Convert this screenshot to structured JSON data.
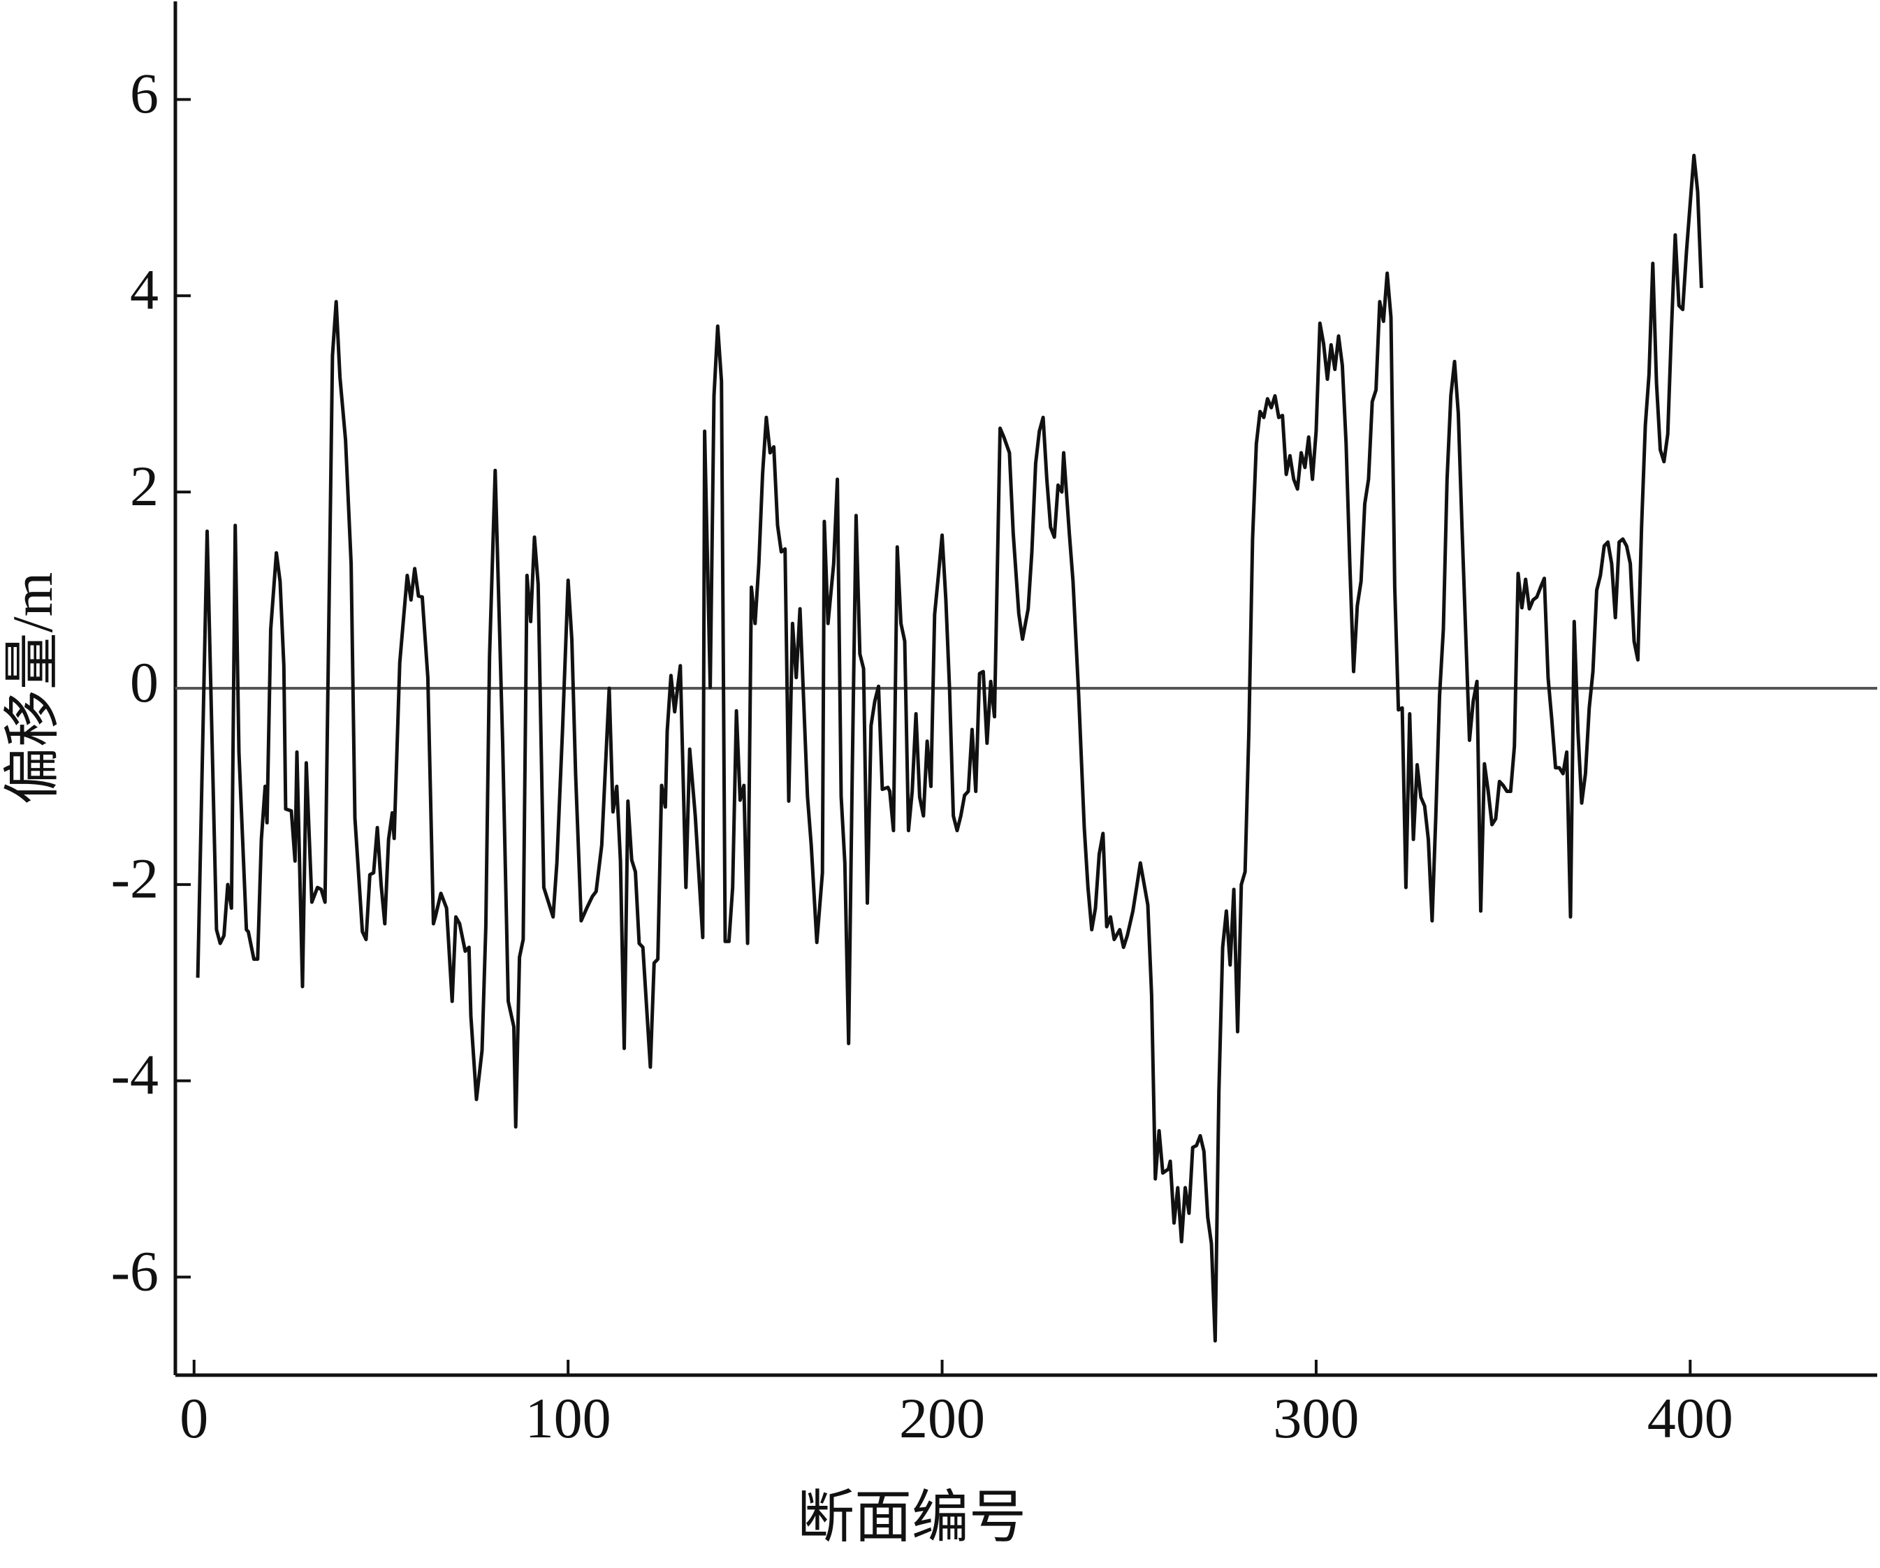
{
  "chart_data": {
    "type": "line",
    "xlabel": "断面编号",
    "ylabel": "偏移量/m",
    "color": "#111111",
    "zero_line": 0,
    "zero_line_color": "#555555",
    "xlim": [
      -5,
      450
    ],
    "ylim": [
      -7,
      7
    ],
    "xticks": [
      0,
      100,
      200,
      300,
      400
    ],
    "yticks": [
      -6,
      -4,
      -2,
      0,
      2,
      4,
      6
    ],
    "x": [
      1,
      3.5,
      6,
      7,
      8,
      9,
      10,
      11,
      12,
      14,
      14.5,
      16,
      17,
      18,
      19,
      19.5,
      20.5,
      22,
      23,
      24,
      24.5,
      26,
      27,
      27.5,
      29,
      30,
      31.5,
      33,
      34,
      35,
      37,
      38,
      39,
      40.5,
      42,
      43,
      45,
      46,
      47,
      48,
      49,
      50,
      51,
      52,
      53,
      53.5,
      55,
      57,
      58,
      59,
      60,
      61,
      62.5,
      64,
      64.5,
      66,
      67.5,
      69,
      70,
      71,
      72.5,
      73.5,
      74,
      75.5,
      77,
      78,
      79,
      80.5,
      82.5,
      84,
      85.5,
      86,
      87,
      88,
      89,
      90,
      91,
      92,
      93.5,
      96,
      97,
      98.5,
      100,
      101,
      102,
      103.5,
      105,
      106.5,
      107.5,
      109,
      111,
      112,
      113,
      114,
      115,
      116,
      117,
      118,
      119,
      120,
      122,
      123,
      124,
      125,
      126,
      126.5,
      127.5,
      128.5,
      130,
      131.5,
      132.5,
      134,
      136,
      136.5,
      138,
      139,
      140,
      141,
      142,
      143,
      144,
      145,
      146,
      147,
      148,
      149,
      150,
      151,
      152,
      153,
      154,
      155,
      156,
      157,
      158,
      159,
      160,
      161,
      162,
      164,
      165,
      166.5,
      168,
      168.5,
      169.5,
      171,
      172,
      173,
      174,
      175,
      176,
      177,
      178,
      179,
      180,
      181,
      182,
      183,
      184,
      185.5,
      186,
      187,
      188,
      189,
      190,
      191,
      192,
      193,
      194,
      195,
      196,
      197,
      198,
      199,
      200,
      201,
      202,
      203,
      204,
      205,
      206,
      207,
      208,
      209,
      210,
      211,
      212,
      213,
      214,
      215.5,
      216.5,
      218,
      219,
      220.5,
      221.5,
      223,
      224,
      225,
      226,
      227,
      228,
      229,
      230,
      231,
      232,
      232.5,
      234,
      235,
      236.5,
      238,
      239,
      240,
      241,
      242,
      243,
      244,
      245,
      246,
      247.5,
      248.5,
      249.5,
      251,
      252,
      253,
      255,
      256,
      257,
      258,
      259,
      260.5,
      261,
      262,
      263,
      264,
      265,
      266,
      267,
      268,
      269,
      270,
      271,
      272,
      273,
      274,
      275,
      276,
      277,
      278,
      279,
      280,
      281,
      282,
      283,
      284,
      285,
      286,
      287,
      288,
      289,
      290,
      291,
      292,
      293,
      294,
      295,
      296,
      297,
      298,
      299,
      300,
      301,
      302,
      303,
      304,
      305,
      306,
      307,
      308,
      309,
      310,
      311,
      312,
      313,
      314,
      315,
      316,
      317,
      318,
      319,
      320,
      321,
      322,
      323,
      324,
      325,
      326,
      327,
      328,
      329,
      330,
      331,
      332,
      333,
      334,
      335,
      336,
      337,
      338,
      339,
      340,
      341,
      342,
      343,
      344,
      345,
      346,
      347,
      348,
      349,
      350,
      351,
      352,
      353,
      354,
      355,
      356,
      357,
      358,
      359,
      360,
      361,
      362,
      363,
      364,
      365,
      366,
      367,
      368,
      369,
      370,
      371,
      372,
      373,
      374,
      375,
      376,
      377,
      378,
      379,
      380,
      381,
      382,
      383,
      384,
      385,
      386,
      387,
      388,
      389,
      390,
      391,
      392,
      393,
      394,
      395,
      396,
      397,
      398,
      399,
      400,
      401,
      402,
      403
    ],
    "values": [
      -2.95,
      1.6,
      -2.46,
      -2.6,
      -2.52,
      -2.0,
      -2.24,
      1.66,
      -0.65,
      -2.46,
      -2.48,
      -2.76,
      -2.76,
      -1.54,
      -1.0,
      -1.37,
      0.6,
      1.38,
      1.09,
      0.23,
      -1.23,
      -1.25,
      -1.76,
      -0.65,
      -3.04,
      -0.76,
      -2.18,
      -2.03,
      -2.05,
      -2.18,
      3.39,
      3.94,
      3.17,
      2.53,
      1.27,
      -1.32,
      -2.48,
      -2.56,
      -1.9,
      -1.88,
      -1.42,
      -2.0,
      -2.4,
      -1.54,
      -1.27,
      -1.53,
      0.26,
      1.15,
      0.9,
      1.22,
      0.94,
      0.93,
      0.11,
      -2.4,
      -2.33,
      -2.09,
      -2.24,
      -3.19,
      -2.33,
      -2.4,
      -2.68,
      -2.64,
      -3.34,
      -4.19,
      -3.69,
      -2.43,
      0.32,
      2.22,
      -0.56,
      -3.19,
      -3.45,
      -4.47,
      -2.74,
      -2.56,
      1.15,
      0.68,
      1.54,
      1.06,
      -2.03,
      -2.33,
      -1.78,
      -0.44,
      1.1,
      0.5,
      -0.87,
      -2.37,
      -2.24,
      -2.12,
      -2.07,
      -1.6,
      0,
      -1.26,
      -1.0,
      -1.76,
      -3.67,
      -1.15,
      -1.75,
      -1.87,
      -2.6,
      -2.64,
      -3.86,
      -2.8,
      -2.76,
      -0.99,
      -1.21,
      -0.44,
      0.13,
      -0.24,
      0.23,
      -2.03,
      -0.62,
      -1.3,
      -2.54,
      2.62,
      0.01,
      2.98,
      3.69,
      3.13,
      -2.58,
      -2.58,
      -2.03,
      -0.23,
      -1.14,
      -0.99,
      -2.6,
      1.03,
      0.66,
      1.27,
      2.19,
      2.76,
      2.4,
      2.46,
      1.66,
      1.39,
      1.42,
      -1.15,
      0.66,
      0.11,
      0.81,
      -1.1,
      -1.6,
      -2.59,
      -1.88,
      1.7,
      0.66,
      1.27,
      2.13,
      -1.1,
      -1.78,
      -3.62,
      -0.81,
      1.76,
      0.35,
      0.2,
      -2.19,
      -0.38,
      -0.13,
      0.02,
      -1.03,
      -1.01,
      -1.05,
      -1.45,
      1.44,
      0.66,
      0.48,
      -1.45,
      -1.05,
      -0.26,
      -1.11,
      -1.3,
      -0.54,
      -1.0,
      0.75,
      1.15,
      1.56,
      0.9,
      -0.01,
      -1.3,
      -1.45,
      -1.3,
      -1.09,
      -1.05,
      -0.42,
      -1.05,
      0.15,
      0.17,
      -0.56,
      0.07,
      -0.29,
      2.65,
      2.56,
      2.4,
      1.58,
      0.76,
      0.5,
      0.81,
      1.39,
      2.29,
      2.62,
      2.76,
      2.13,
      1.64,
      1.54,
      2.07,
      2.0,
      2.4,
      1.58,
      1.09,
      -0.07,
      -1.42,
      -2.03,
      -2.46,
      -2.24,
      -1.69,
      -1.48,
      -2.43,
      -2.33,
      -2.56,
      -2.46,
      -2.64,
      -2.52,
      -2.27,
      -2.03,
      -1.78,
      -2.21,
      -3.13,
      -5.0,
      -4.51,
      -4.94,
      -4.9,
      -4.82,
      -5.45,
      -5.09,
      -5.64,
      -5.09,
      -5.35,
      -4.68,
      -4.66,
      -4.56,
      -4.72,
      -5.39,
      -5.66,
      -6.65,
      -4.11,
      -2.64,
      -2.27,
      -2.82,
      -2.05,
      -3.5,
      -2.0,
      -1.87,
      -0.44,
      1.52,
      2.49,
      2.82,
      2.76,
      2.95,
      2.86,
      2.98,
      2.76,
      2.78,
      2.18,
      2.37,
      2.13,
      2.03,
      2.4,
      2.25,
      2.56,
      2.13,
      2.62,
      3.72,
      3.51,
      3.15,
      3.5,
      3.25,
      3.59,
      3.29,
      2.49,
      1.27,
      0.17,
      0.84,
      1.09,
      1.88,
      2.13,
      2.92,
      3.04,
      3.94,
      3.74,
      4.23,
      3.78,
      1.03,
      -0.22,
      -0.2,
      -2.03,
      -0.26,
      -1.54,
      -0.78,
      -1.11,
      -1.2,
      -1.54,
      -2.37,
      -1.3,
      -0.07,
      0.6,
      2.13,
      2.98,
      3.33,
      2.8,
      1.64,
      0.54,
      -0.53,
      -0.13,
      0.07,
      -2.27,
      -0.77,
      -1.05,
      -1.39,
      -1.33,
      -0.95,
      -0.99,
      -1.05,
      -1.05,
      -0.59,
      1.17,
      0.82,
      1.11,
      0.81,
      0.9,
      0.93,
      1.03,
      1.12,
      0.11,
      -0.32,
      -0.81,
      -0.81,
      -0.87,
      -0.65,
      -2.33,
      0.68,
      -0.44,
      -1.17,
      -0.87,
      -0.2,
      0.17,
      1.0,
      1.15,
      1.45,
      1.49,
      1.27,
      0.72,
      1.49,
      1.52,
      1.45,
      1.27,
      0.48,
      0.29,
      1.64,
      2.68,
      3.2,
      4.33,
      3.11,
      2.43,
      2.31,
      2.59,
      3.66,
      4.62,
      3.9,
      3.86,
      4.45,
      4.94,
      5.43,
      5.06,
      4.08
    ]
  }
}
